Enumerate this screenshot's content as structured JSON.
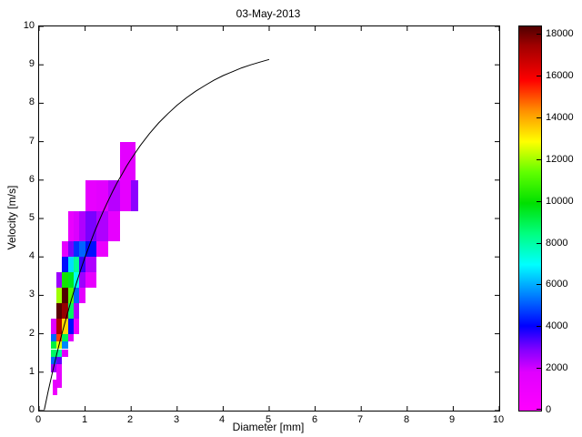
{
  "figure": {
    "background": "#ffffff",
    "axis_color": "#000000",
    "curve_color": "#000000"
  },
  "chart_data": {
    "type": "heatmap",
    "title": "03-May-2013",
    "xlabel": "Diameter [mm]",
    "ylabel": "Velocity [m/s]",
    "xlim": [
      0,
      10
    ],
    "ylim": [
      0,
      10
    ],
    "xticks": [
      0,
      1,
      2,
      3,
      4,
      5,
      6,
      7,
      8,
      9,
      10
    ],
    "yticks": [
      0,
      1,
      2,
      3,
      4,
      5,
      6,
      7,
      8,
      9,
      10
    ],
    "grid": "off",
    "legend": "none",
    "colorbar": {
      "min": 0,
      "max": 18400,
      "ticks": [
        0,
        2000,
        4000,
        6000,
        8000,
        10000,
        12000,
        14000,
        16000,
        18000
      ],
      "position": "right"
    },
    "colormap_stops": [
      [
        0.0,
        "#ff00ff"
      ],
      [
        0.1,
        "#e000ff"
      ],
      [
        0.16,
        "#8000ff"
      ],
      [
        0.22,
        "#0000ff"
      ],
      [
        0.3,
        "#0080ff"
      ],
      [
        0.38,
        "#00ffff"
      ],
      [
        0.46,
        "#00ff80"
      ],
      [
        0.54,
        "#00e000"
      ],
      [
        0.62,
        "#60ff00"
      ],
      [
        0.7,
        "#ffff00"
      ],
      [
        0.78,
        "#ff9000"
      ],
      [
        0.86,
        "#ff0000"
      ],
      [
        0.95,
        "#a00000"
      ],
      [
        1.0,
        "#500000"
      ]
    ],
    "cells": [
      [
        0.3,
        0.4,
        0.4,
        0.6,
        900
      ],
      [
        0.3,
        0.5,
        0.6,
        0.8,
        1400
      ],
      [
        0.375,
        0.5,
        0.8,
        1.0,
        1600
      ],
      [
        0.25,
        0.375,
        1.0,
        1.2,
        2600
      ],
      [
        0.25,
        0.375,
        1.2,
        1.4,
        5200
      ],
      [
        0.25,
        0.375,
        1.4,
        1.6,
        8800
      ],
      [
        0.25,
        0.375,
        1.6,
        1.8,
        9200
      ],
      [
        0.25,
        0.375,
        1.8,
        2.0,
        5200
      ],
      [
        0.25,
        0.375,
        2.0,
        2.4,
        1800
      ],
      [
        0.375,
        0.5,
        1.0,
        1.2,
        1500
      ],
      [
        0.375,
        0.5,
        1.2,
        1.4,
        3200
      ],
      [
        0.375,
        0.5,
        1.4,
        1.6,
        8200
      ],
      [
        0.375,
        0.5,
        1.6,
        1.8,
        12600
      ],
      [
        0.375,
        0.5,
        1.8,
        2.0,
        15200
      ],
      [
        0.375,
        0.5,
        2.0,
        2.4,
        17200
      ],
      [
        0.375,
        0.5,
        2.4,
        2.8,
        18300
      ],
      [
        0.375,
        0.5,
        2.8,
        3.2,
        12000
      ],
      [
        0.375,
        0.5,
        3.2,
        3.6,
        2600
      ],
      [
        0.5,
        0.625,
        1.4,
        1.6,
        1800
      ],
      [
        0.5,
        0.625,
        1.6,
        1.8,
        5600
      ],
      [
        0.5,
        0.625,
        1.8,
        2.0,
        9000
      ],
      [
        0.5,
        0.625,
        2.0,
        2.4,
        13400
      ],
      [
        0.5,
        0.625,
        2.4,
        2.8,
        17600
      ],
      [
        0.5,
        0.625,
        2.8,
        3.2,
        18400
      ],
      [
        0.5,
        0.625,
        3.2,
        3.6,
        10200
      ],
      [
        0.5,
        0.625,
        3.6,
        4.0,
        4200
      ],
      [
        0.5,
        0.625,
        4.0,
        4.4,
        1500
      ],
      [
        0.625,
        0.75,
        1.8,
        2.0,
        1600
      ],
      [
        0.625,
        0.75,
        2.0,
        2.4,
        4200
      ],
      [
        0.625,
        0.75,
        2.4,
        2.8,
        8800
      ],
      [
        0.625,
        0.75,
        2.8,
        3.2,
        11200
      ],
      [
        0.625,
        0.75,
        3.2,
        3.6,
        9600
      ],
      [
        0.625,
        0.75,
        3.6,
        4.0,
        6600
      ],
      [
        0.625,
        0.75,
        4.0,
        4.4,
        3000
      ],
      [
        0.625,
        0.75,
        4.4,
        5.2,
        1300
      ],
      [
        0.75,
        0.875,
        2.0,
        2.4,
        1200
      ],
      [
        0.75,
        0.875,
        2.4,
        2.8,
        2400
      ],
      [
        0.75,
        0.875,
        2.8,
        3.2,
        5200
      ],
      [
        0.75,
        0.875,
        3.2,
        3.6,
        7200
      ],
      [
        0.75,
        0.875,
        3.6,
        4.0,
        8200
      ],
      [
        0.75,
        0.875,
        4.0,
        4.4,
        4600
      ],
      [
        0.75,
        0.875,
        4.4,
        5.2,
        1900
      ],
      [
        0.875,
        1.0,
        2.8,
        3.2,
        1500
      ],
      [
        0.875,
        1.0,
        3.2,
        3.6,
        2600
      ],
      [
        0.875,
        1.0,
        3.6,
        4.0,
        3600
      ],
      [
        0.875,
        1.0,
        4.0,
        4.4,
        5200
      ],
      [
        0.875,
        1.0,
        4.4,
        5.2,
        2400
      ],
      [
        1.0,
        1.25,
        3.2,
        3.6,
        1400
      ],
      [
        1.0,
        1.25,
        3.6,
        4.0,
        2400
      ],
      [
        1.0,
        1.25,
        4.0,
        4.4,
        4200
      ],
      [
        1.0,
        1.25,
        4.4,
        5.2,
        3000
      ],
      [
        1.0,
        1.25,
        5.2,
        6.0,
        1400
      ],
      [
        1.25,
        1.5,
        4.0,
        4.4,
        1200
      ],
      [
        1.25,
        1.5,
        4.4,
        5.2,
        2400
      ],
      [
        1.25,
        1.5,
        5.2,
        6.0,
        1700
      ],
      [
        1.5,
        1.75,
        4.4,
        5.2,
        1400
      ],
      [
        1.5,
        1.75,
        5.2,
        6.0,
        2300
      ],
      [
        1.75,
        2.0,
        5.2,
        6.0,
        1500
      ],
      [
        2.0,
        2.15,
        5.2,
        6.0,
        2800
      ],
      [
        1.75,
        2.1,
        6.0,
        7.0,
        1600
      ]
    ],
    "curve": {
      "name": "terminal-velocity-curve",
      "x": [
        0.11,
        0.2,
        0.3,
        0.4,
        0.5,
        0.6,
        0.7,
        0.8,
        0.9,
        1.0,
        1.1,
        1.2,
        1.3,
        1.4,
        1.5,
        1.6,
        1.7,
        1.8,
        1.9,
        2.0,
        2.2,
        2.4,
        2.6,
        2.8,
        3.0,
        3.2,
        3.4,
        3.6,
        3.8,
        4.0,
        4.2,
        4.4,
        4.6,
        4.8,
        5.0
      ],
      "y": [
        0.01,
        0.52,
        1.05,
        1.55,
        2.02,
        2.46,
        2.88,
        3.28,
        3.65,
        4.0,
        4.33,
        4.64,
        4.93,
        5.2,
        5.46,
        5.71,
        5.94,
        6.15,
        6.36,
        6.55,
        6.9,
        7.21,
        7.49,
        7.73,
        7.95,
        8.14,
        8.31,
        8.46,
        8.6,
        8.72,
        8.82,
        8.92,
        9.0,
        9.07,
        9.14
      ]
    }
  }
}
